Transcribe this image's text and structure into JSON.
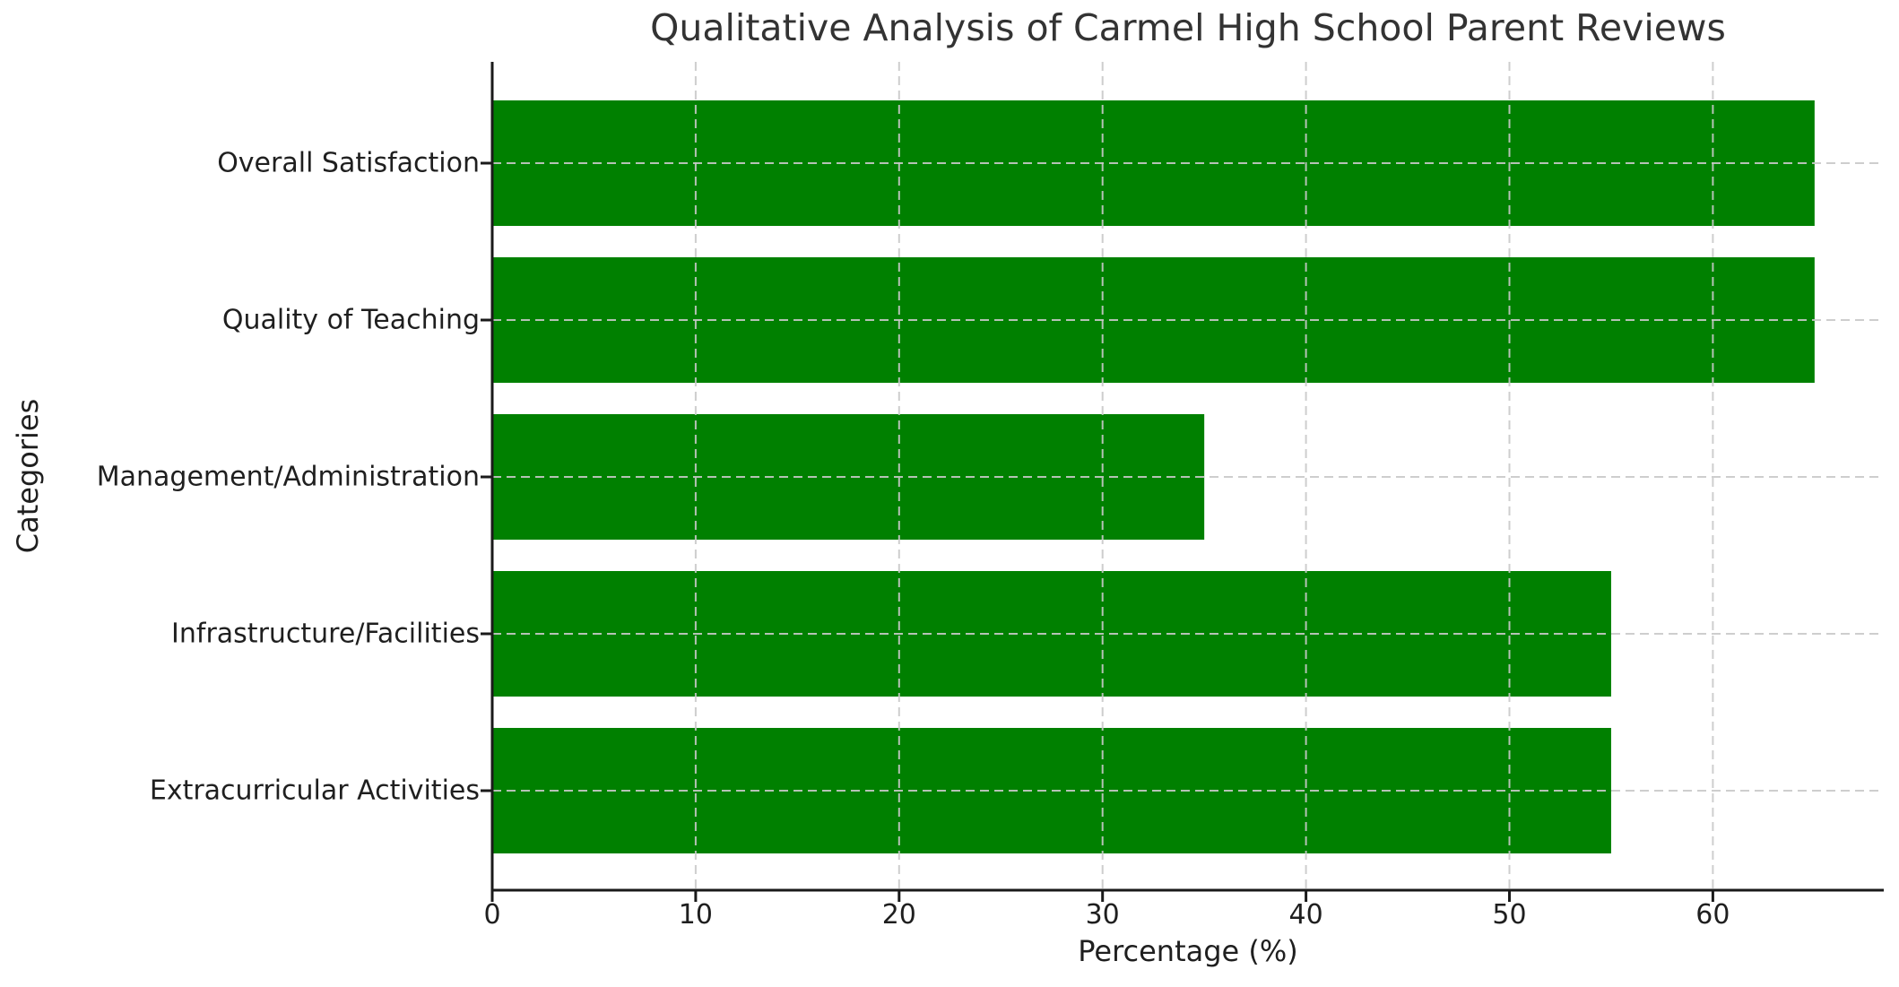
{
  "chart_data": {
    "type": "bar",
    "orientation": "horizontal",
    "title": "Qualitative Analysis of Carmel High School Parent Reviews",
    "xlabel": "Percentage (%)",
    "ylabel": "Categories",
    "categories": [
      "Overall Satisfaction",
      "Quality of Teaching",
      "Management/Administration",
      "Infrastructure/Facilities",
      "Extracurricular Activities"
    ],
    "values": [
      65,
      65,
      35,
      55,
      55
    ],
    "xticks": [
      0,
      10,
      20,
      30,
      40,
      50,
      60
    ],
    "xtick_labels": [
      "0",
      "10",
      "20",
      "30",
      "40",
      "50",
      "60"
    ],
    "xlim": [
      0,
      68.4
    ],
    "bar_color": "#008000",
    "grid": {
      "style": "dashed",
      "axes": "both",
      "color": "#c9c9c9",
      "above_bars": true
    },
    "legend": "none"
  }
}
